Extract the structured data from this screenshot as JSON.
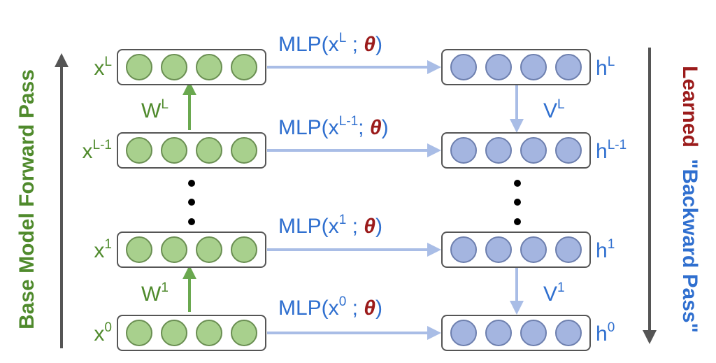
{
  "side_titles": {
    "left": "Base Model Forward Pass",
    "right_word_1": "Learned",
    "right_word_2": "\"Backward Pass\""
  },
  "left_layers": [
    {
      "base": "x",
      "sup": "L"
    },
    {
      "base": "x",
      "sup": "L-1"
    },
    {
      "base": "x",
      "sup": "1"
    },
    {
      "base": "x",
      "sup": "0"
    }
  ],
  "right_layers": [
    {
      "base": "h",
      "sup": "L"
    },
    {
      "base": "h",
      "sup": "L-1"
    },
    {
      "base": "h",
      "sup": "1"
    },
    {
      "base": "h",
      "sup": "0"
    }
  ],
  "mlp_labels": [
    {
      "prefix": "MLP(x",
      "sup": "L",
      "sep": " ; ",
      "param": "θ",
      "suffix": ")"
    },
    {
      "prefix": "MLP(x",
      "sup": "L-1",
      "sep": "; ",
      "param": "θ",
      "suffix": ")"
    },
    {
      "prefix": "MLP(x",
      "sup": "1",
      "sep": " ; ",
      "param": "θ",
      "suffix": ")"
    },
    {
      "prefix": "MLP(x",
      "sup": "0",
      "sep": " ; ",
      "param": "θ",
      "suffix": ")"
    }
  ],
  "weight_labels": [
    {
      "base": "W",
      "sup": "L"
    },
    {
      "base": "W",
      "sup": "1"
    }
  ],
  "backward_labels": [
    {
      "base": "V",
      "sup": "L"
    },
    {
      "base": "V",
      "sup": "1"
    }
  ],
  "colors": {
    "green_node": "#a8d08d",
    "green_stroke": "#6a8f52",
    "blue_node": "#a4b5e0",
    "blue_stroke": "#6d7fae",
    "green_text": "#4f8a2c",
    "blue_text": "#2f6fcf",
    "dark_red": "#9b1b1b",
    "gray_arrow": "#555555",
    "light_blue_arrow": "#a9bde6",
    "green_arrow": "#6aa84f"
  }
}
